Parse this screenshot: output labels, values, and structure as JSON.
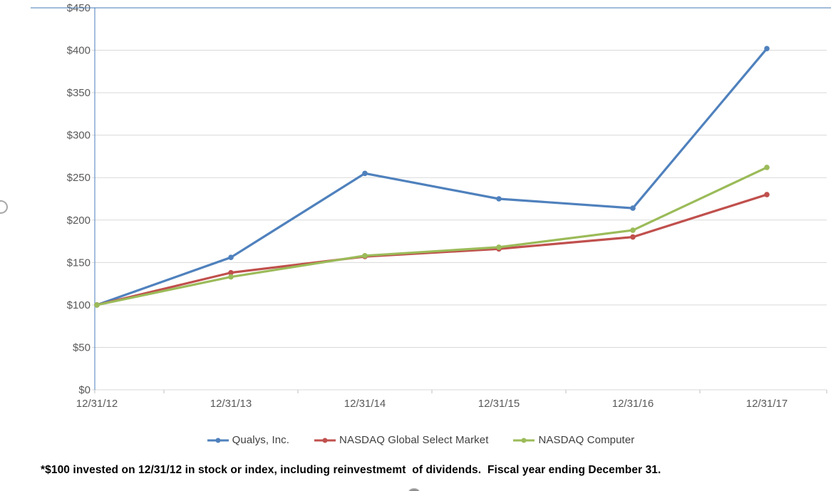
{
  "chart": {
    "footnote": "*$100 invested on 12/31/12 in stock or index, including reinvestmemt  of dividends.  Fiscal year ending December 31.",
    "axis_label_color": "#595959",
    "gridline_color": "#D9D9D9",
    "border_color": "#4F81BD",
    "tick_color": "#BFBFBF",
    "legend_text_color": "#404040"
  },
  "chart_data": {
    "type": "line",
    "title": "",
    "xlabel": "",
    "ylabel": "",
    "categories": [
      "12/31/12",
      "12/31/13",
      "12/31/14",
      "12/31/15",
      "12/31/16",
      "12/31/17"
    ],
    "series": [
      {
        "name": "Qualys, Inc.",
        "color": "#4F81BD",
        "values": [
          100,
          156,
          255,
          225,
          214,
          402
        ]
      },
      {
        "name": "NASDAQ Global Select Market",
        "color": "#C0504D",
        "values": [
          100,
          138,
          157,
          166,
          180,
          230
        ]
      },
      {
        "name": "NASDAQ Computer",
        "color": "#9BBB59",
        "values": [
          100,
          133,
          158,
          168,
          188,
          262
        ]
      }
    ],
    "ylim": [
      0,
      450
    ],
    "ytick_step": 50,
    "ytick_prefix": "$",
    "grid": true,
    "legend_position": "bottom",
    "marker": "circle"
  }
}
